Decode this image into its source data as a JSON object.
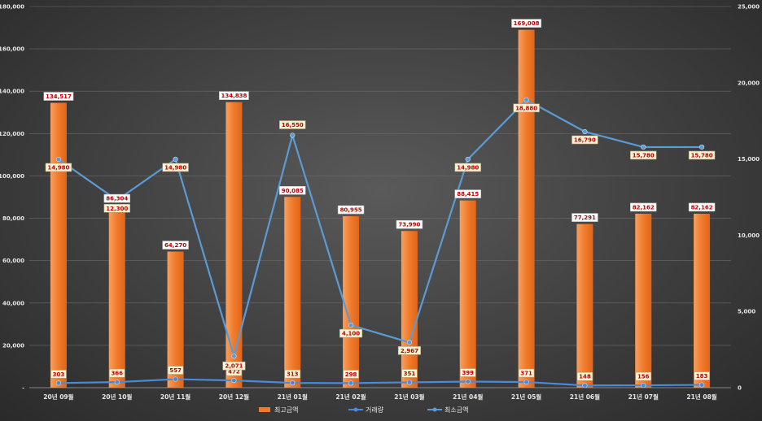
{
  "chart_data": {
    "type": "bar",
    "categories": [
      "20년 09월",
      "20년 10월",
      "20년 11월",
      "20년 12월",
      "21년 01월",
      "21년 02월",
      "21년 03월",
      "21년 04월",
      "21년 05월",
      "21년 06월",
      "21년 07월",
      "21년 08월"
    ],
    "series": [
      {
        "name": "최고금액",
        "type": "bar",
        "axis": "left",
        "color": "#f07a2a",
        "values": [
          134517,
          86304,
          64270,
          134838,
          90085,
          80955,
          73990,
          88415,
          169008,
          77291,
          82162,
          82162
        ],
        "labels": [
          "134,517",
          "86,304",
          "64,270",
          "134,838",
          "90,085",
          "80,955",
          "73,990",
          "88,415",
          "169,008",
          "77,291",
          "82,162",
          "82,162"
        ]
      },
      {
        "name": "거래량",
        "type": "line",
        "axis": "right",
        "color": "#4a8ad8",
        "values": [
          303,
          366,
          557,
          472,
          313,
          298,
          351,
          399,
          371,
          148,
          156,
          183
        ],
        "labels": [
          "303",
          "366",
          "557",
          "472",
          "313",
          "298",
          "351",
          "399",
          "371",
          "148",
          "156",
          "183"
        ]
      },
      {
        "name": "최소금액",
        "type": "line",
        "axis": "right",
        "color": "#5b9bd5",
        "values": [
          14980,
          12300,
          14980,
          2071,
          16550,
          4100,
          2967,
          14980,
          18880,
          16790,
          15780,
          15780
        ],
        "labels": [
          "14,980",
          "12,300",
          "14,980",
          "2,071",
          "16,550",
          "4,100",
          "2,967",
          "14,980",
          "18,880",
          "16,790",
          "15,780",
          "15,780"
        ]
      }
    ],
    "left_axis": {
      "min": 0,
      "max": 180000,
      "ticks": [
        "-",
        "20,000",
        "40,000",
        "60,000",
        "80,000",
        "100,000",
        "120,000",
        "140,000",
        "160,000",
        "180,000"
      ]
    },
    "right_axis": {
      "min": 0,
      "max": 25000,
      "ticks": [
        "0",
        "5,000",
        "10,000",
        "15,000",
        "20,000",
        "25,000"
      ]
    },
    "grid": true,
    "legend": "bottom"
  }
}
